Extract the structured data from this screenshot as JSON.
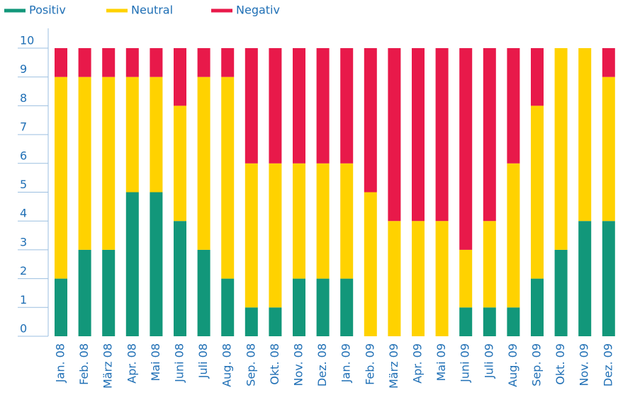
{
  "chart_data": {
    "type": "stacked_bar",
    "categories": [
      "Jan. 08",
      "Feb. 08",
      "März 08",
      "Apr. 08",
      "Mai 08",
      "Juni 08",
      "Juli 08",
      "Aug. 08",
      "Sep. 08",
      "Okt. 08",
      "Nov. 08",
      "Dez. 08",
      "Jan. 09",
      "Feb. 09",
      "März 09",
      "Apr. 09",
      "Mai 09",
      "Juni 09",
      "Juli 09",
      "Aug. 09",
      "Sep. 09",
      "Okt. 09",
      "Nov. 09",
      "Dez. 09"
    ],
    "series": [
      {
        "name": "Positiv",
        "color": "#12977a",
        "values": [
          2,
          3,
          3,
          5,
          5,
          4,
          3,
          2,
          1,
          1,
          2,
          2,
          2,
          0,
          0,
          0,
          0,
          1,
          1,
          1,
          2,
          3,
          4,
          4
        ]
      },
      {
        "name": "Neutral",
        "color": "#ffd200",
        "values": [
          7,
          6,
          6,
          4,
          4,
          4,
          6,
          7,
          5,
          5,
          4,
          4,
          4,
          5,
          4,
          4,
          4,
          2,
          3,
          5,
          6,
          7,
          6,
          5
        ]
      },
      {
        "name": "Negativ",
        "color": "#e8194a",
        "values": [
          1,
          1,
          1,
          1,
          1,
          2,
          1,
          1,
          4,
          4,
          4,
          4,
          4,
          5,
          6,
          6,
          6,
          7,
          6,
          4,
          2,
          0,
          0,
          1
        ]
      }
    ],
    "ylim": [
      0,
      10
    ],
    "yticks": [
      0,
      1,
      2,
      3,
      4,
      5,
      6,
      7,
      8,
      9,
      10
    ],
    "legend": "top-left"
  }
}
